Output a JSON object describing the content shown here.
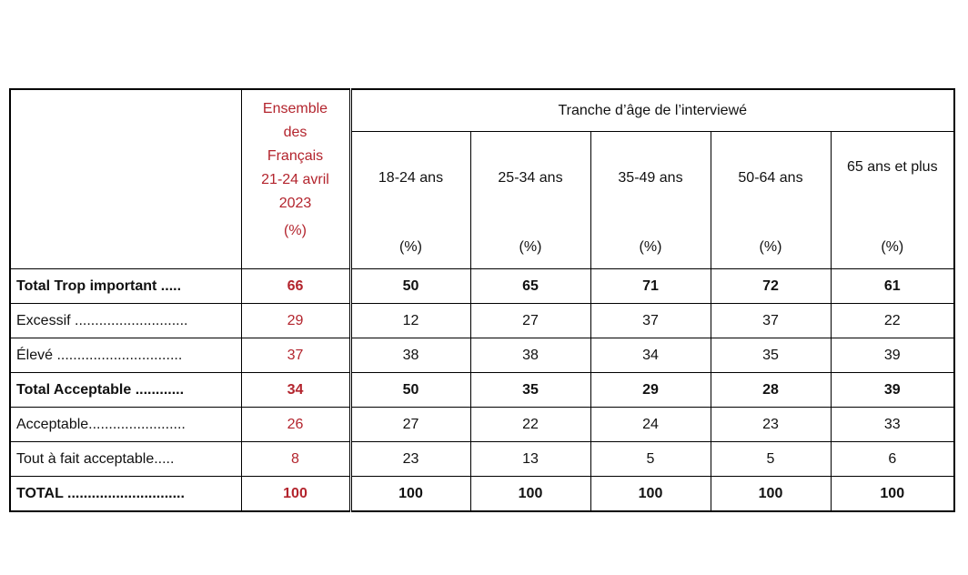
{
  "table": {
    "ensemble_header": {
      "line1": "Ensemble",
      "line2": "des",
      "line3": "Français",
      "line4": "21-24 avril",
      "line5": "2023",
      "unit": "(%)"
    },
    "age_group_header": "Tranche d’âge de l’interviewé",
    "age_columns": [
      {
        "label": "18-24 ans",
        "unit": "(%)"
      },
      {
        "label": "25-34 ans",
        "unit": "(%)"
      },
      {
        "label": "35-49 ans",
        "unit": "(%)"
      },
      {
        "label": "50-64 ans",
        "unit": "(%)"
      },
      {
        "label": "65 ans et plus",
        "unit": "(%)"
      }
    ],
    "rows": [
      {
        "label": "Total Trop important .....",
        "bold": true,
        "ensemble": "66",
        "values": [
          "50",
          "65",
          "71",
          "72",
          "61"
        ]
      },
      {
        "label": "Excessif ............................",
        "bold": false,
        "ensemble": "29",
        "values": [
          "12",
          "27",
          "37",
          "37",
          "22"
        ]
      },
      {
        "label": "Élevé ...............................",
        "bold": false,
        "ensemble": "37",
        "values": [
          "38",
          "38",
          "34",
          "35",
          "39"
        ]
      },
      {
        "label": "Total Acceptable ............",
        "bold": true,
        "ensemble": "34",
        "values": [
          "50",
          "35",
          "29",
          "28",
          "39"
        ]
      },
      {
        "label": "Acceptable........................",
        "bold": false,
        "ensemble": "26",
        "values": [
          "27",
          "22",
          "24",
          "23",
          "33"
        ]
      },
      {
        "label": "Tout à fait acceptable.....",
        "bold": false,
        "ensemble": "8",
        "values": [
          "23",
          "13",
          "5",
          "5",
          "6"
        ]
      },
      {
        "label": "TOTAL .............................",
        "bold": true,
        "ensemble": "100",
        "values": [
          "100",
          "100",
          "100",
          "100",
          "100"
        ]
      }
    ],
    "colors": {
      "accent_red": "#b3242d",
      "border": "#000000",
      "text": "#111111"
    }
  }
}
